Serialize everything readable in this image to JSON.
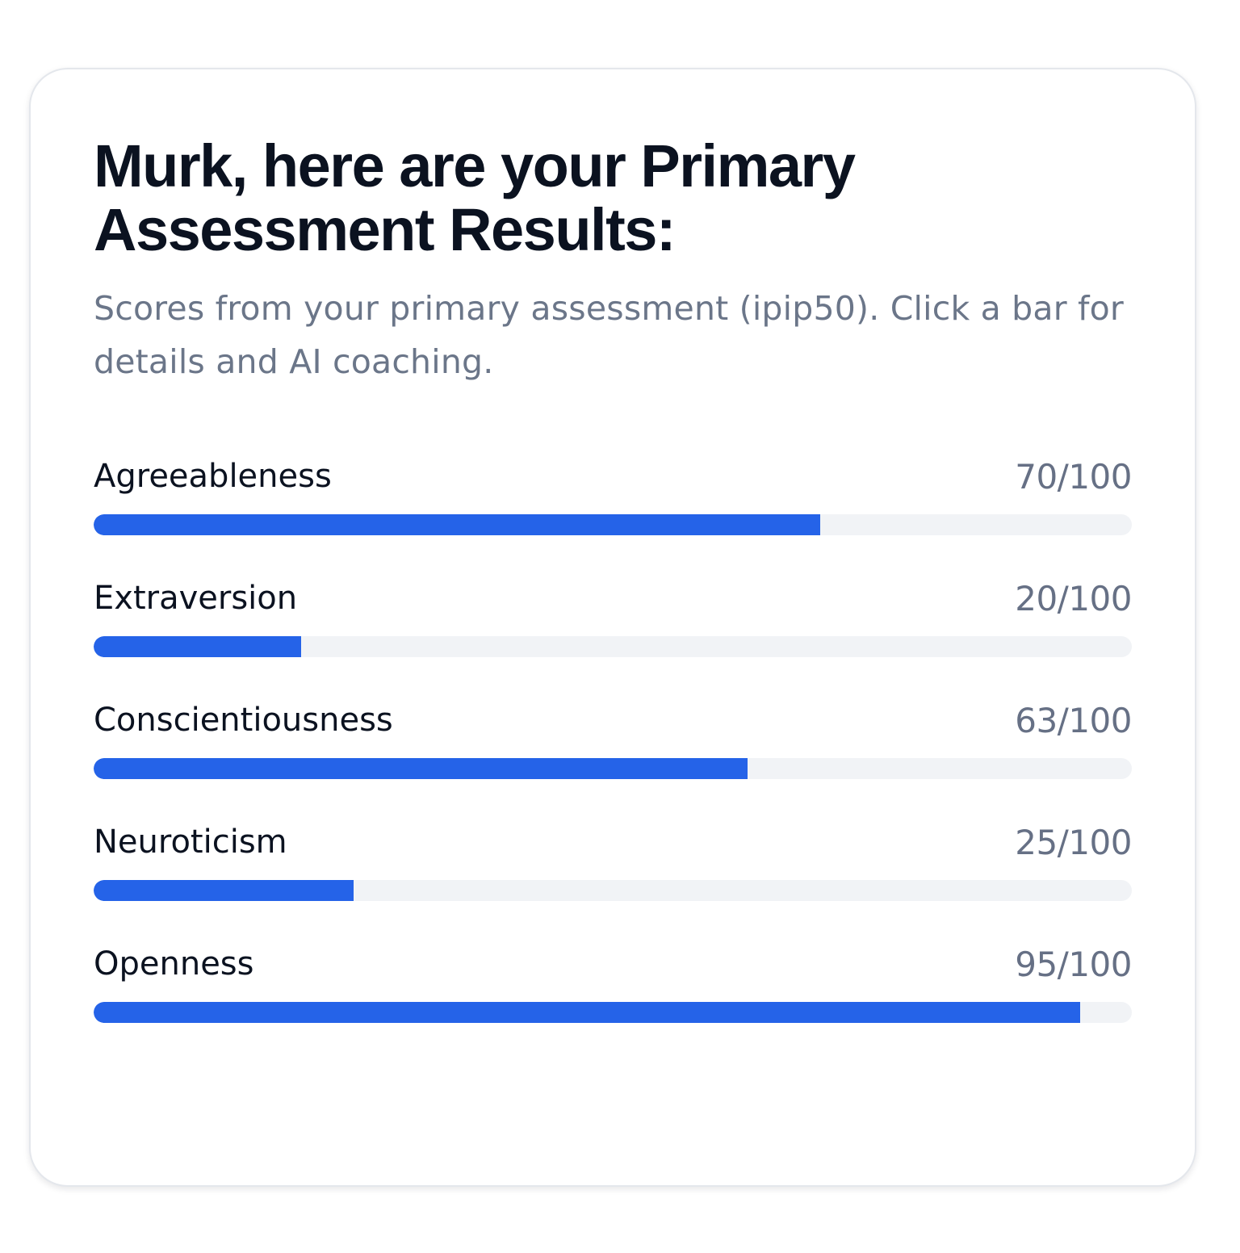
{
  "header": {
    "title": "Murk, here are your Primary Assessment Results:",
    "subtitle": "Scores from your primary assessment (ipip50). Click a bar for details and AI coaching."
  },
  "colors": {
    "accent": "#2563e8",
    "track": "#f1f3f6",
    "title_text": "#0b1220",
    "muted_text": "#6b7689"
  },
  "scores": [
    {
      "label": "Agreeableness",
      "value": 70,
      "max": 100,
      "score_text": "70/100"
    },
    {
      "label": "Extraversion",
      "value": 20,
      "max": 100,
      "score_text": "20/100"
    },
    {
      "label": "Conscientiousness",
      "value": 63,
      "max": 100,
      "score_text": "63/100"
    },
    {
      "label": "Neuroticism",
      "value": 25,
      "max": 100,
      "score_text": "25/100"
    },
    {
      "label": "Openness",
      "value": 95,
      "max": 100,
      "score_text": "95/100"
    }
  ]
}
